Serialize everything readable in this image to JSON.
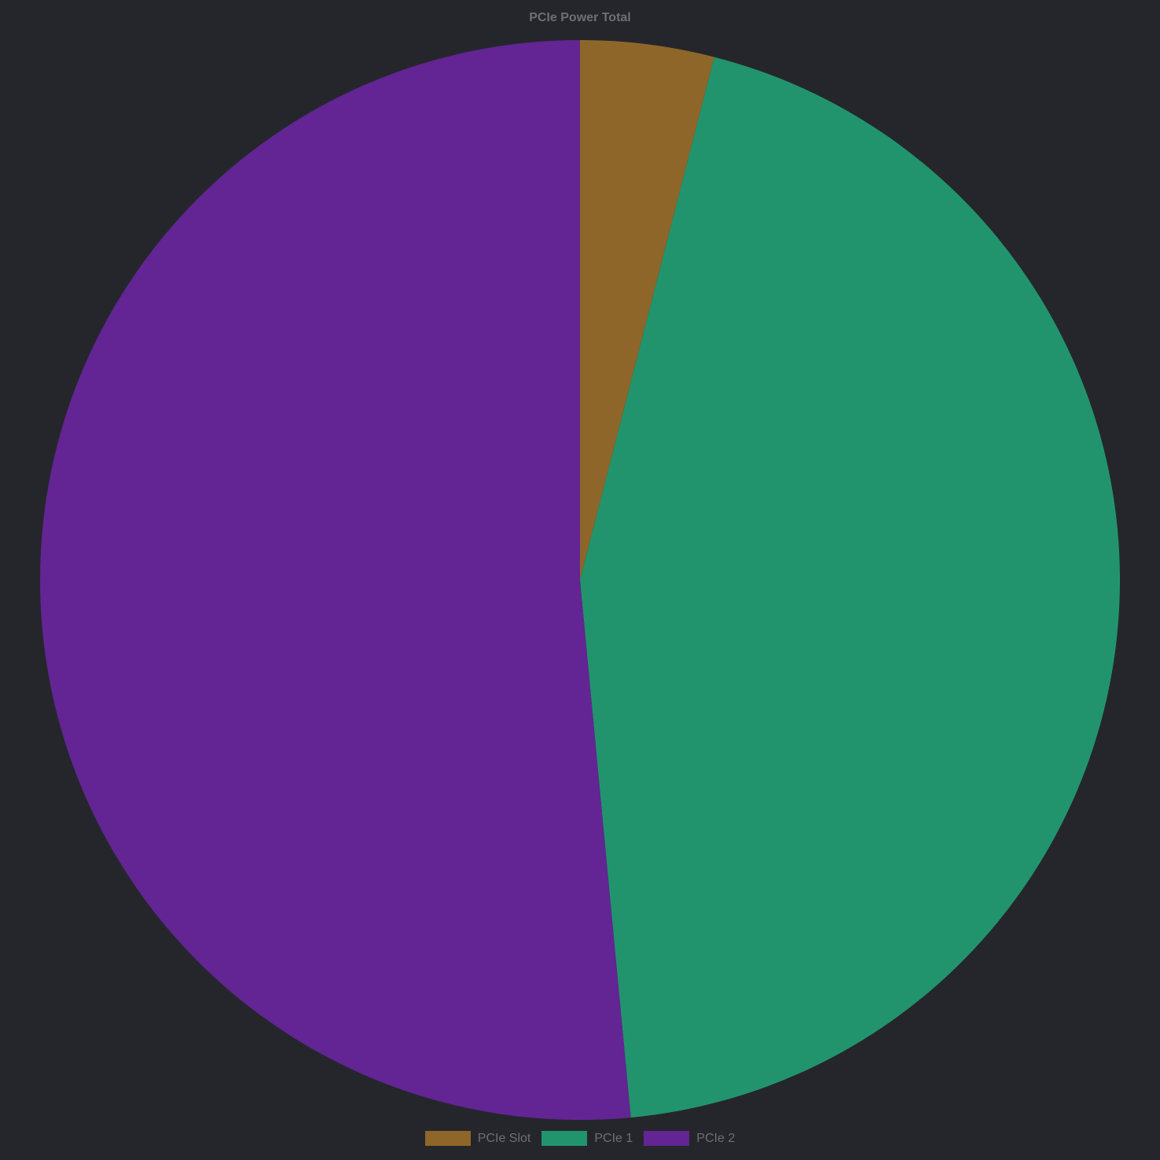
{
  "chart_data": {
    "type": "pie",
    "title": "PCIe Power Total",
    "categories": [
      "PCIe Slot",
      "PCIe 1",
      "PCIe 2"
    ],
    "values": [
      4.0,
      44.5,
      51.5
    ],
    "colors": [
      "#8f6629",
      "#22946d",
      "#622593"
    ],
    "start_angle_deg": 0,
    "direction": "clockwise",
    "legend_position": "bottom"
  },
  "legend": {
    "items": [
      {
        "label": "PCIe Slot",
        "color": "#8f6629"
      },
      {
        "label": "PCIe 1",
        "color": "#22946d"
      },
      {
        "label": "PCIe 2",
        "color": "#622593"
      }
    ]
  },
  "colors": {
    "background": "#25262b",
    "text": "#6e6f73"
  }
}
